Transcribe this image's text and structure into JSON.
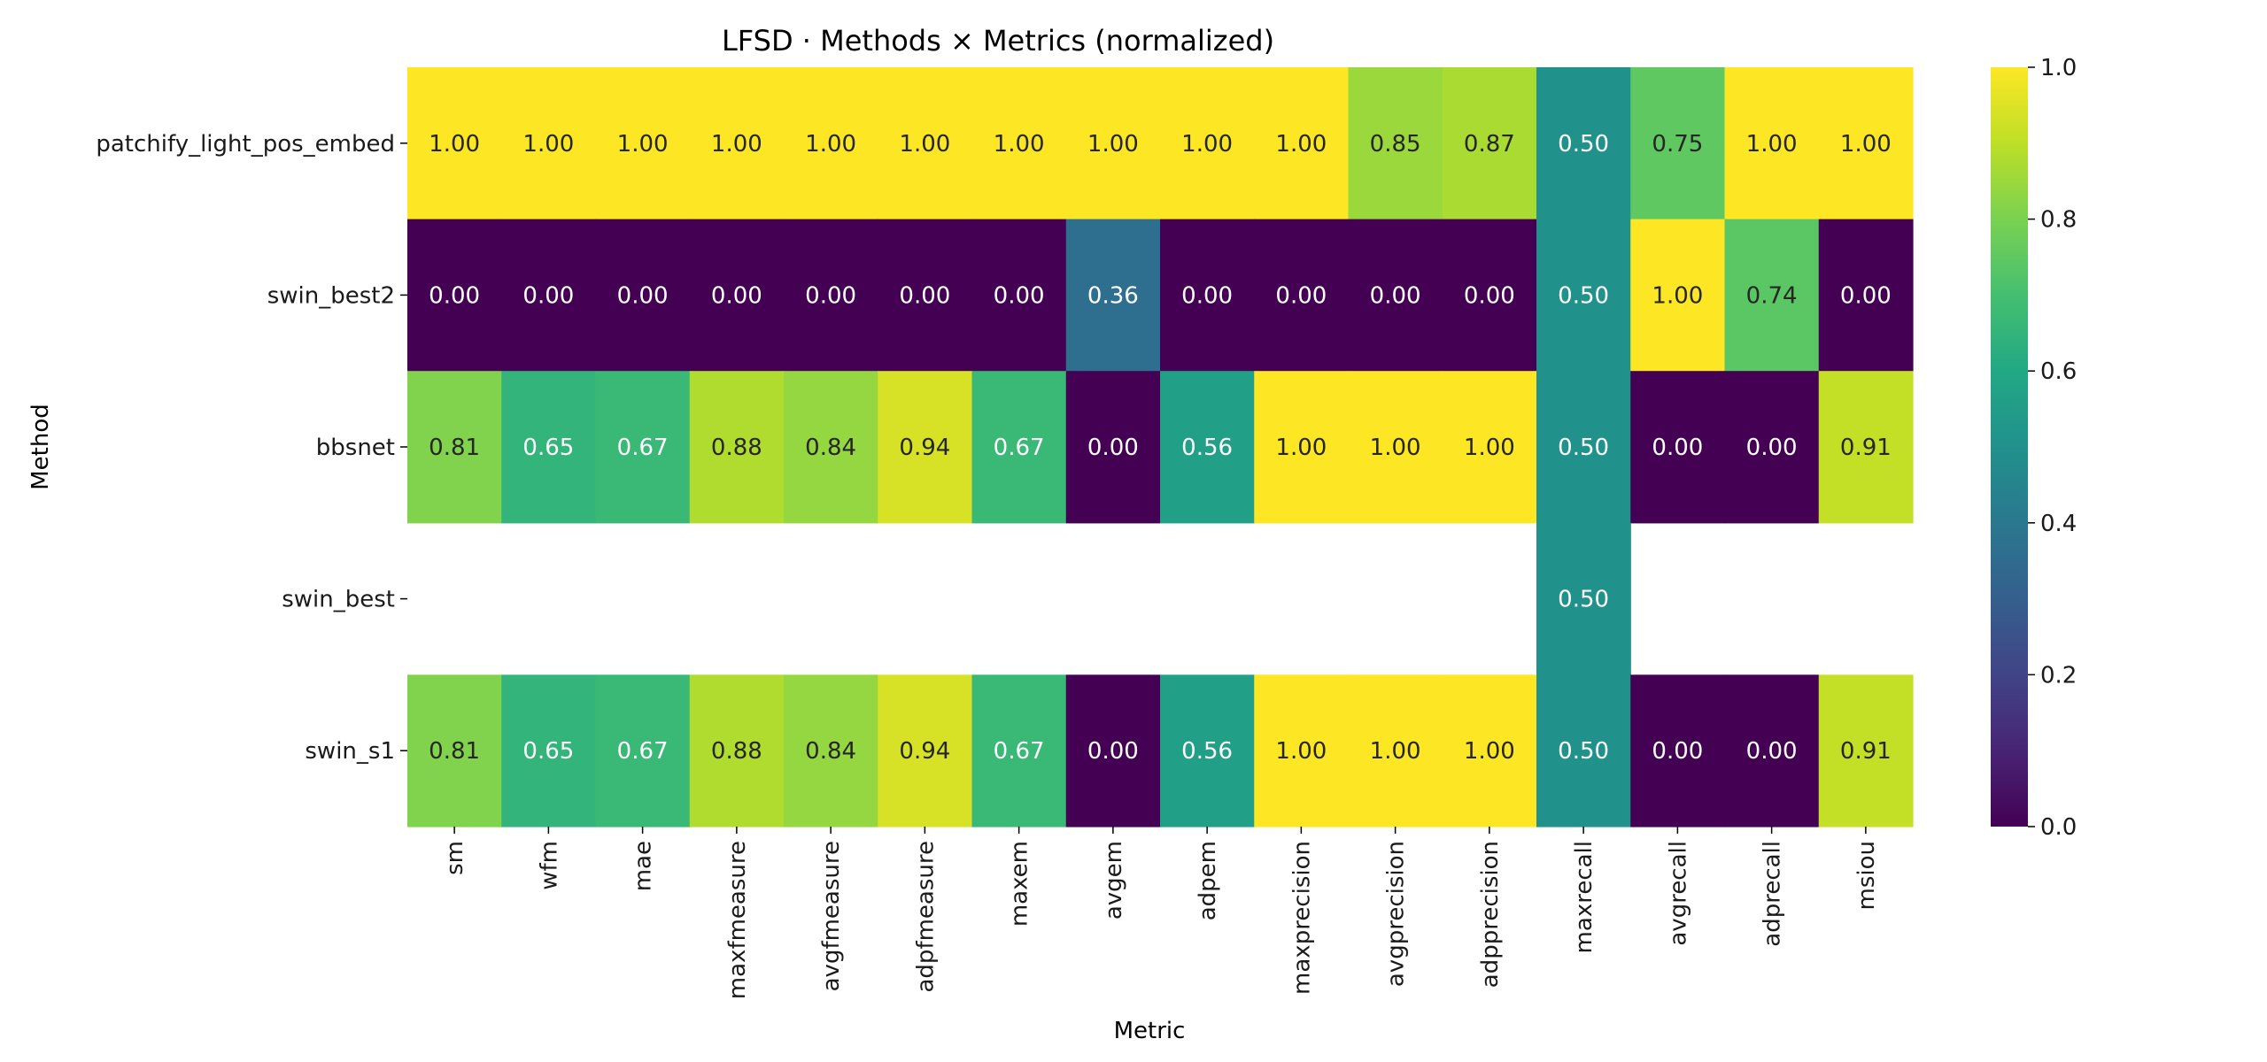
{
  "chart_data": {
    "type": "heatmap",
    "title": "LFSD · Methods × Metrics (normalized)",
    "xlabel": "Metric",
    "ylabel": "Method",
    "colormap": "viridis",
    "colorbar": {
      "range": [
        0.0,
        1.0
      ],
      "ticks": [
        "0.0",
        "0.2",
        "0.4",
        "0.6",
        "0.8",
        "1.0"
      ]
    },
    "columns": [
      "sm",
      "wfm",
      "mae",
      "maxfmeasure",
      "avgfmeasure",
      "adpfmeasure",
      "maxem",
      "avgem",
      "adpem",
      "maxprecision",
      "avgprecision",
      "adpprecision",
      "maxrecall",
      "avgrecall",
      "adprecall",
      "msiou"
    ],
    "rows": [
      {
        "name": "patchify_light_pos_embed",
        "values": [
          1.0,
          1.0,
          1.0,
          1.0,
          1.0,
          1.0,
          1.0,
          1.0,
          1.0,
          1.0,
          0.85,
          0.87,
          0.5,
          0.75,
          1.0,
          1.0
        ],
        "labels": [
          "1.00",
          "1.00",
          "1.00",
          "1.00",
          "1.00",
          "1.00",
          "1.00",
          "1.00",
          "1.00",
          "1.00",
          "0.85",
          "0.87",
          "0.50",
          "0.75",
          "1.00",
          "1.00"
        ]
      },
      {
        "name": "swin_best2",
        "values": [
          0.0,
          0.0,
          0.0,
          0.0,
          0.0,
          0.0,
          0.0,
          0.36,
          0.0,
          0.0,
          0.0,
          0.0,
          0.5,
          1.0,
          0.74,
          0.0
        ],
        "labels": [
          "0.00",
          "0.00",
          "0.00",
          "0.00",
          "0.00",
          "0.00",
          "0.00",
          "0.36",
          "0.00",
          "0.00",
          "0.00",
          "0.00",
          "0.50",
          "1.00",
          "0.74",
          "0.00"
        ]
      },
      {
        "name": "bbsnet",
        "values": [
          0.81,
          0.65,
          0.67,
          0.88,
          0.84,
          0.94,
          0.67,
          0.0,
          0.56,
          1.0,
          1.0,
          1.0,
          0.5,
          0.0,
          0.0,
          0.91
        ],
        "labels": [
          "0.81",
          "0.65",
          "0.67",
          "0.88",
          "0.84",
          "0.94",
          "0.67",
          "0.00",
          "0.56",
          "1.00",
          "1.00",
          "1.00",
          "0.50",
          "0.00",
          "0.00",
          "0.91"
        ]
      },
      {
        "name": "swin_best",
        "values": [
          null,
          null,
          null,
          null,
          null,
          null,
          null,
          null,
          null,
          null,
          null,
          null,
          0.5,
          null,
          null,
          null
        ],
        "labels": [
          "",
          "",
          "",
          "",
          "",
          "",
          "",
          "",
          "",
          "",
          "",
          "",
          "0.50",
          "",
          "",
          ""
        ]
      },
      {
        "name": "swin_s1",
        "values": [
          0.81,
          0.65,
          0.67,
          0.88,
          0.84,
          0.94,
          0.67,
          0.0,
          0.56,
          1.0,
          1.0,
          1.0,
          0.5,
          0.0,
          0.0,
          0.91
        ],
        "labels": [
          "0.81",
          "0.65",
          "0.67",
          "0.88",
          "0.84",
          "0.94",
          "0.67",
          "0.00",
          "0.56",
          "1.00",
          "1.00",
          "1.00",
          "0.50",
          "0.00",
          "0.00",
          "0.91"
        ]
      }
    ]
  }
}
